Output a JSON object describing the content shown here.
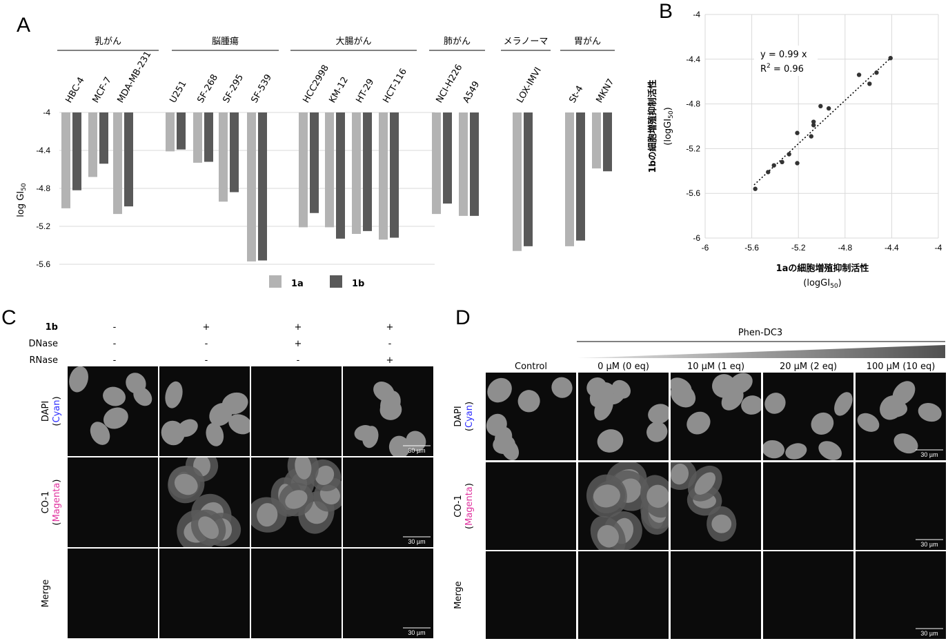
{
  "panels": {
    "A": "A",
    "B": "B",
    "C": "C",
    "D": "D"
  },
  "chart_data": [
    {
      "type": "bar",
      "ylabel": "log GI50",
      "ylim": [
        -5.7,
        -4.0
      ],
      "yticks": [
        "-4",
        "-4.4",
        "-4.8",
        "-5.2",
        "-5.6"
      ],
      "groups": [
        {
          "name": "乳がん",
          "cells": [
            "HBC-4",
            "MCF-7",
            "MDA-MB-231"
          ]
        },
        {
          "name": "脳腫瘍",
          "cells": [
            "U251",
            "SF-268",
            "SF-295",
            "SF-539"
          ]
        },
        {
          "name": "大腸がん",
          "cells": [
            "HCC2998",
            "KM-12",
            "HT-29",
            "HCT-116"
          ]
        },
        {
          "name": "肺がん",
          "cells": [
            "NCI-H226",
            "A549"
          ]
        },
        {
          "name": "メラノーマ",
          "cells": [
            "LOX-IMVI"
          ]
        },
        {
          "name": "胃がん",
          "cells": [
            "St-4",
            "MKN7"
          ]
        }
      ],
      "categories": [
        "HBC-4",
        "MCF-7",
        "MDA-MB-231",
        "U251",
        "SF-268",
        "SF-295",
        "SF-539",
        "HCC2998",
        "KM-12",
        "HT-29",
        "HCT-116",
        "NCI-H226",
        "A549",
        "LOX-IMVI",
        "St-4",
        "MKN7"
      ],
      "series": [
        {
          "name": "1a",
          "color": "#b3b3b3",
          "values": [
            -5.01,
            -4.68,
            -5.07,
            -4.41,
            -4.53,
            -4.94,
            -5.57,
            -5.21,
            -5.21,
            -5.28,
            -5.34,
            -5.07,
            -5.09,
            -5.46,
            -5.41,
            -4.59
          ]
        },
        {
          "name": "1b",
          "color": "#595959",
          "values": [
            -4.82,
            -4.54,
            -4.99,
            -4.39,
            -4.52,
            -4.84,
            -5.56,
            -5.06,
            -5.33,
            -5.25,
            -5.32,
            -4.96,
            -5.09,
            -5.41,
            -5.35,
            -4.62
          ]
        }
      ]
    },
    {
      "type": "scatter",
      "xlabel": "1aの細胞増殖抑制活性",
      "xlabel2": "(logGI50)",
      "ylabel": "1bの細胞増殖抑制活性",
      "ylabel2": "(logGI50)",
      "xlim": [
        -6,
        -4
      ],
      "ylim": [
        -6,
        -4
      ],
      "xticks": [
        "-6",
        "-5.6",
        "-5.2",
        "-4.8",
        "-4.4",
        "-4"
      ],
      "yticks": [
        "-4",
        "-4.4",
        "-4.8",
        "-5.2",
        "-5.6",
        "-6"
      ],
      "fit": {
        "eq": "y = 0.99 x",
        "r2": "R2 = 0.96"
      },
      "points": [
        [
          -5.57,
          -5.56
        ],
        [
          -5.41,
          -5.35
        ],
        [
          -5.34,
          -5.32
        ],
        [
          -5.28,
          -5.25
        ],
        [
          -5.21,
          -5.33
        ],
        [
          -5.21,
          -5.06
        ],
        [
          -5.09,
          -5.09
        ],
        [
          -5.07,
          -4.96
        ],
        [
          -5.07,
          -4.99
        ],
        [
          -5.01,
          -4.82
        ],
        [
          -4.94,
          -4.84
        ],
        [
          -5.46,
          -5.41
        ],
        [
          -4.68,
          -4.54
        ],
        [
          -4.59,
          -4.62
        ],
        [
          -4.53,
          -4.52
        ],
        [
          -4.41,
          -4.39
        ]
      ]
    }
  ],
  "panelC": {
    "rows": [
      "1b",
      "DNase",
      "RNase"
    ],
    "conditions": [
      [
        "-",
        "-",
        "-"
      ],
      [
        "+",
        "-",
        "-"
      ],
      [
        "+",
        "+",
        "-"
      ],
      [
        "+",
        "-",
        "+"
      ]
    ],
    "channels": [
      {
        "name": "DAPI",
        "color_name": "Cyan"
      },
      {
        "name": "CO-1",
        "color_name": "Magenta"
      },
      {
        "name": "Merge",
        "color_name": ""
      }
    ],
    "scale": "30 µm"
  },
  "panelD": {
    "compound": "Phen-DC3",
    "columns": [
      "Control",
      "0 µM (0 eq)",
      "10 µM (1 eq)",
      "20 µM (2 eq)",
      "100 µM (10 eq)"
    ],
    "channels": [
      {
        "name": "DAPI",
        "color_name": "Cyan"
      },
      {
        "name": "CO-1",
        "color_name": "Magenta"
      },
      {
        "name": "Merge",
        "color_name": ""
      }
    ],
    "scale": "30 µm"
  },
  "colors": {
    "cyan": "#2b2bff",
    "magenta": "#e0309e",
    "bar1a": "#b3b3b3",
    "bar1b": "#595959"
  }
}
